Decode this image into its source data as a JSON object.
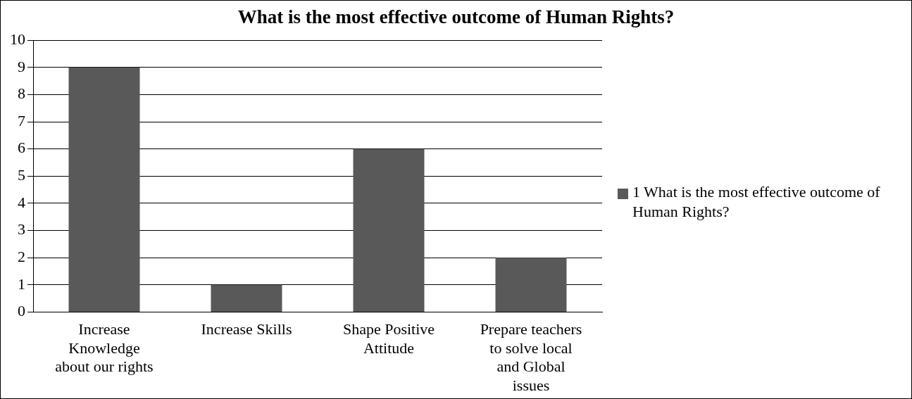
{
  "chart_data": {
    "type": "bar",
    "title": "What is the most effective outcome of Human Rights?",
    "categories": [
      "Increase Knowledge about our rights",
      "Increase Skills",
      "Shape Positive Attitude",
      "Prepare teachers to solve local and Global issues"
    ],
    "series": [
      {
        "name": "1 What is the most effective outcome of Human Rights?",
        "color": "#595959",
        "values": [
          9,
          1,
          6,
          2
        ]
      }
    ],
    "ylim": [
      0,
      10
    ],
    "yticks": [
      0,
      1,
      2,
      3,
      4,
      5,
      6,
      7,
      8,
      9,
      10
    ],
    "grid": "y",
    "legend": "right"
  }
}
